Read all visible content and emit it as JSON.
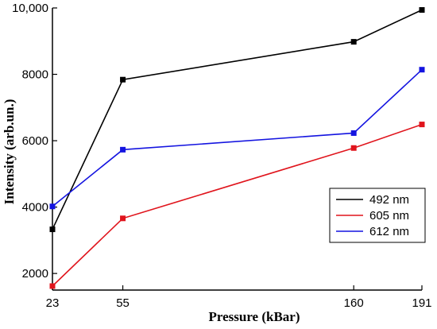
{
  "chart_data": {
    "type": "line",
    "xlabel": "Pressure (kBar)",
    "ylabel": "Intensity (arb.un.)",
    "x": [
      23,
      55,
      160,
      191
    ],
    "xticks": [
      "23",
      "55",
      "160",
      "191"
    ],
    "yticks": [
      "2000",
      "4000",
      "6000",
      "8000",
      "10,000"
    ],
    "ytick_values": [
      2000,
      4000,
      6000,
      8000,
      10000
    ],
    "xlim": [
      23,
      191
    ],
    "ylim": [
      1500,
      10000
    ],
    "legend_position": "right",
    "series": [
      {
        "name": "492 nm",
        "color": "#000000",
        "values": [
          3330,
          7840,
          8980,
          9940
        ]
      },
      {
        "name": "605 nm",
        "color": "#e0141c",
        "values": [
          1620,
          3660,
          5780,
          6490
        ]
      },
      {
        "name": "612 nm",
        "color": "#1414e0",
        "values": [
          4020,
          5730,
          6230,
          8140
        ]
      }
    ]
  }
}
